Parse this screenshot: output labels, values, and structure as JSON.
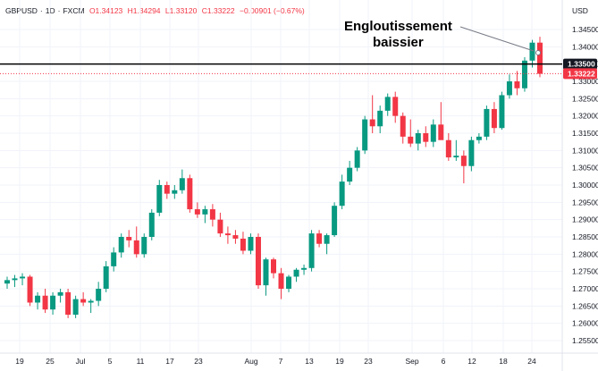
{
  "header": {
    "symbol": "GBPUSD",
    "timeframe": "1D",
    "source": "FXCM",
    "open": "O1.34123",
    "high": "H1.34294",
    "low": "L1.33120",
    "close": "C1.33222",
    "change": "−0.00901 (−0.67%)"
  },
  "currency_label": "USD",
  "annotation": {
    "line1": "Engloutissement",
    "line2": "baissier"
  },
  "price_tags": {
    "level": {
      "value": "1.33500",
      "bg": "#131722"
    },
    "last": {
      "value": "1.33222",
      "bg": "#f23645"
    }
  },
  "colors": {
    "up": "#089981",
    "down": "#f23645",
    "grid": "#f0f3fa"
  },
  "chart_data": {
    "type": "candlestick",
    "title": "GBPUSD · 1D · FXCM",
    "xlabel": "",
    "ylabel": "USD",
    "ylim": [
      1.2525,
      1.3475
    ],
    "y_ticks": [
      "1.34500",
      "1.34000",
      "1.33500",
      "1.33000",
      "1.32500",
      "1.32000",
      "1.31500",
      "1.31000",
      "1.30500",
      "1.30000",
      "1.29500",
      "1.29000",
      "1.28500",
      "1.28000",
      "1.27500",
      "1.27000",
      "1.26500",
      "1.26000",
      "1.25500"
    ],
    "x_ticks": [
      "19",
      "25",
      "Jul",
      "5",
      "11",
      "17",
      "23",
      "Aug",
      "7",
      "13",
      "19",
      "23",
      "Sep",
      "6",
      "12",
      "18",
      "24"
    ],
    "horizontal_line": 1.335,
    "last_price": 1.33222,
    "annotation": "Engloutissement baissier",
    "candles": [
      [
        1.2715,
        1.2735,
        1.27,
        1.2725
      ],
      [
        1.2725,
        1.274,
        1.2705,
        1.273
      ],
      [
        1.273,
        1.2745,
        1.271,
        1.2735
      ],
      [
        1.2735,
        1.274,
        1.265,
        1.266
      ],
      [
        1.266,
        1.269,
        1.264,
        1.268
      ],
      [
        1.268,
        1.27,
        1.263,
        1.264
      ],
      [
        1.264,
        1.269,
        1.2625,
        1.268
      ],
      [
        1.268,
        1.27,
        1.266,
        1.269
      ],
      [
        1.269,
        1.27,
        1.2615,
        1.2625
      ],
      [
        1.2625,
        1.268,
        1.2615,
        1.267
      ],
      [
        1.267,
        1.269,
        1.265,
        1.266
      ],
      [
        1.266,
        1.267,
        1.263,
        1.2665
      ],
      [
        1.2665,
        1.272,
        1.265,
        1.27
      ],
      [
        1.27,
        1.278,
        1.269,
        1.2765
      ],
      [
        1.2765,
        1.282,
        1.275,
        1.2805
      ],
      [
        1.2805,
        1.286,
        1.279,
        1.285
      ],
      [
        1.285,
        1.287,
        1.282,
        1.284
      ],
      [
        1.284,
        1.288,
        1.279,
        1.28
      ],
      [
        1.28,
        1.286,
        1.279,
        1.285
      ],
      [
        1.285,
        1.293,
        1.284,
        1.292
      ],
      [
        1.292,
        1.3015,
        1.291,
        1.3
      ],
      [
        1.3,
        1.301,
        1.296,
        1.2975
      ],
      [
        1.2975,
        1.3,
        1.296,
        1.2985
      ],
      [
        1.2985,
        1.3045,
        1.2975,
        1.302
      ],
      [
        1.302,
        1.303,
        1.292,
        1.293
      ],
      [
        1.293,
        1.295,
        1.2905,
        1.2915
      ],
      [
        1.2915,
        1.294,
        1.289,
        1.293
      ],
      [
        1.293,
        1.2945,
        1.288,
        1.29
      ],
      [
        1.29,
        1.292,
        1.285,
        1.286
      ],
      [
        1.286,
        1.288,
        1.283,
        1.2855
      ],
      [
        1.2855,
        1.287,
        1.283,
        1.2845
      ],
      [
        1.2845,
        1.2865,
        1.28,
        1.281
      ],
      [
        1.281,
        1.286,
        1.28,
        1.285
      ],
      [
        1.285,
        1.286,
        1.27,
        1.271
      ],
      [
        1.271,
        1.279,
        1.268,
        1.2785
      ],
      [
        1.2785,
        1.279,
        1.273,
        1.2745
      ],
      [
        1.2745,
        1.276,
        1.267,
        1.27
      ],
      [
        1.27,
        1.274,
        1.269,
        1.2735
      ],
      [
        1.2735,
        1.276,
        1.272,
        1.2755
      ],
      [
        1.2755,
        1.277,
        1.274,
        1.276
      ],
      [
        1.276,
        1.287,
        1.275,
        1.286
      ],
      [
        1.286,
        1.287,
        1.282,
        1.283
      ],
      [
        1.283,
        1.286,
        1.28,
        1.2855
      ],
      [
        1.2855,
        1.295,
        1.285,
        1.294
      ],
      [
        1.294,
        1.303,
        1.293,
        1.301
      ],
      [
        1.301,
        1.307,
        1.3,
        1.305
      ],
      [
        1.305,
        1.311,
        1.304,
        1.31
      ],
      [
        1.31,
        1.32,
        1.309,
        1.319
      ],
      [
        1.319,
        1.326,
        1.315,
        1.317
      ],
      [
        1.317,
        1.323,
        1.315,
        1.3215
      ],
      [
        1.3215,
        1.3265,
        1.32,
        1.3255
      ],
      [
        1.3255,
        1.327,
        1.318,
        1.32
      ],
      [
        1.32,
        1.321,
        1.312,
        1.314
      ],
      [
        1.314,
        1.319,
        1.311,
        1.312
      ],
      [
        1.312,
        1.316,
        1.31,
        1.315
      ],
      [
        1.315,
        1.317,
        1.311,
        1.3125
      ],
      [
        1.3125,
        1.319,
        1.311,
        1.3175
      ],
      [
        1.3175,
        1.324,
        1.315,
        1.313
      ],
      [
        1.313,
        1.315,
        1.307,
        1.308
      ],
      [
        1.308,
        1.313,
        1.307,
        1.3085
      ],
      [
        1.3085,
        1.31,
        1.3005,
        1.3055
      ],
      [
        1.3055,
        1.314,
        1.304,
        1.313
      ],
      [
        1.313,
        1.315,
        1.312,
        1.314
      ],
      [
        1.314,
        1.323,
        1.313,
        1.322
      ],
      [
        1.322,
        1.324,
        1.315,
        1.3165
      ],
      [
        1.3165,
        1.327,
        1.316,
        1.326
      ],
      [
        1.326,
        1.332,
        1.325,
        1.33
      ],
      [
        1.33,
        1.333,
        1.326,
        1.328
      ],
      [
        1.328,
        1.337,
        1.327,
        1.336
      ],
      [
        1.336,
        1.342,
        1.334,
        1.3412
      ],
      [
        1.3412,
        1.3429,
        1.3312,
        1.3322
      ]
    ]
  }
}
